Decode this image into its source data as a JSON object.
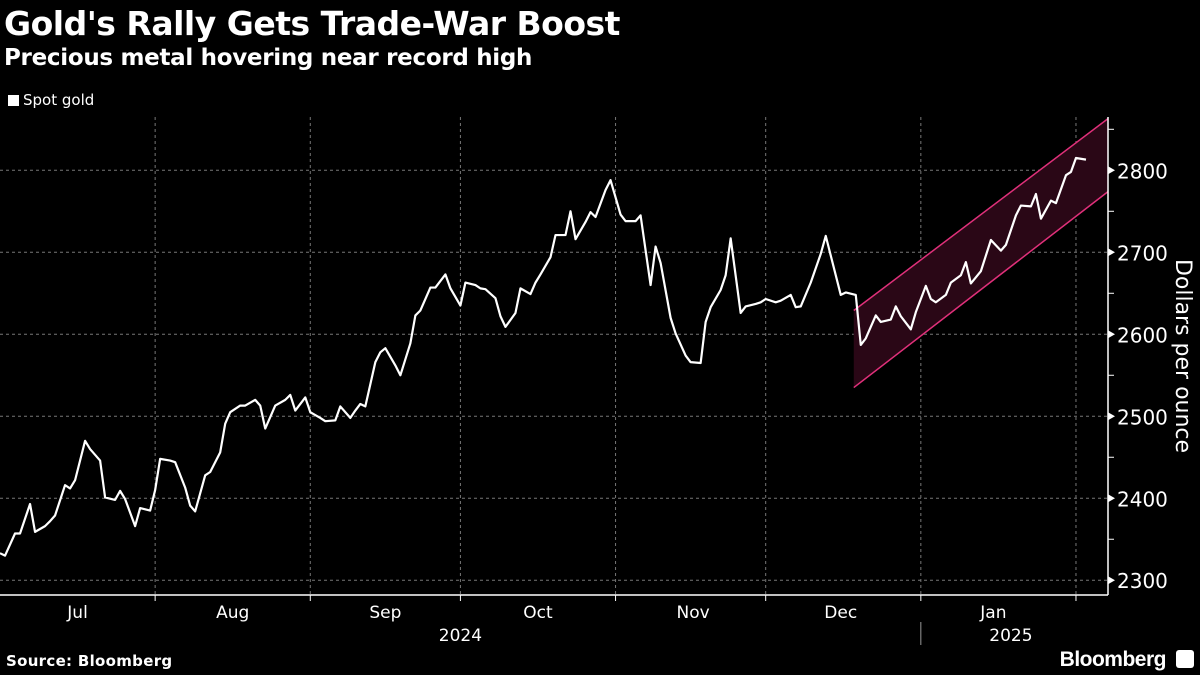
{
  "chart_data": {
    "type": "line",
    "title": "Gold's Rally Gets Trade-War Boost",
    "subtitle": "Precious metal hovering near record high",
    "legend": [
      {
        "name": "Spot gold",
        "color": "#ffffff"
      }
    ],
    "legend_placement": "top-left",
    "ylabel": "Dollars per ounce",
    "ylim": [
      2282,
      2865
    ],
    "yticks": [
      2300,
      2400,
      2500,
      2600,
      2700,
      2800
    ],
    "x_unit": "days since 2024-07-01",
    "xlim": [
      0,
      221.4
    ],
    "month_boundaries": [
      31,
      62,
      92,
      123,
      153,
      184,
      215
    ],
    "month_labels": [
      {
        "label": "Jul",
        "day": 15.5
      },
      {
        "label": "Aug",
        "day": 46.5
      },
      {
        "label": "Sep",
        "day": 77
      },
      {
        "label": "Oct",
        "day": 107.5
      },
      {
        "label": "Nov",
        "day": 138.5
      },
      {
        "label": "Dec",
        "day": 168
      },
      {
        "label": "Jan",
        "day": 198.5
      }
    ],
    "year_labels": [
      {
        "label": "2024",
        "day": 92
      },
      {
        "label": "2025",
        "day": 202
      }
    ],
    "year_divider_day": 184,
    "grid": true,
    "series": [
      {
        "name": "Spot gold",
        "color": "#ffffff",
        "points": [
          [
            0,
            2333
          ],
          [
            1,
            2330
          ],
          [
            3,
            2357
          ],
          [
            4,
            2357
          ],
          [
            6,
            2393
          ],
          [
            7,
            2359
          ],
          [
            9,
            2366
          ],
          [
            10,
            2372
          ],
          [
            11,
            2379
          ],
          [
            13,
            2416
          ],
          [
            14,
            2412
          ],
          [
            15,
            2422
          ],
          [
            17,
            2470
          ],
          [
            18,
            2460
          ],
          [
            20,
            2446
          ],
          [
            21,
            2401
          ],
          [
            23,
            2398
          ],
          [
            24,
            2409
          ],
          [
            25,
            2399
          ],
          [
            27,
            2366
          ],
          [
            28,
            2388
          ],
          [
            30,
            2385
          ],
          [
            31,
            2410
          ],
          [
            32,
            2448
          ],
          [
            34,
            2446
          ],
          [
            35,
            2444
          ],
          [
            37,
            2413
          ],
          [
            38,
            2391
          ],
          [
            39,
            2384
          ],
          [
            41,
            2428
          ],
          [
            42,
            2432
          ],
          [
            44,
            2456
          ],
          [
            45,
            2491
          ],
          [
            46,
            2505
          ],
          [
            48,
            2513
          ],
          [
            49,
            2513
          ],
          [
            51,
            2520
          ],
          [
            52,
            2513
          ],
          [
            53,
            2485
          ],
          [
            55,
            2513
          ],
          [
            57,
            2520
          ],
          [
            58,
            2526
          ],
          [
            59,
            2507
          ],
          [
            61,
            2523
          ],
          [
            62,
            2505
          ],
          [
            64,
            2498
          ],
          [
            65,
            2494
          ],
          [
            67,
            2495
          ],
          [
            68,
            2512
          ],
          [
            70,
            2498
          ],
          [
            71,
            2507
          ],
          [
            72,
            2515
          ],
          [
            73,
            2512
          ],
          [
            75,
            2566
          ],
          [
            76,
            2578
          ],
          [
            77,
            2583
          ],
          [
            79,
            2562
          ],
          [
            80,
            2550
          ],
          [
            82,
            2589
          ],
          [
            83,
            2623
          ],
          [
            84,
            2629
          ],
          [
            86,
            2657
          ],
          [
            87,
            2657
          ],
          [
            89,
            2673
          ],
          [
            90,
            2656
          ],
          [
            92,
            2635
          ],
          [
            93,
            2663
          ],
          [
            95,
            2660
          ],
          [
            96,
            2656
          ],
          [
            97,
            2655
          ],
          [
            99,
            2644
          ],
          [
            100,
            2622
          ],
          [
            101,
            2609
          ],
          [
            103,
            2626
          ],
          [
            104,
            2656
          ],
          [
            106,
            2649
          ],
          [
            107,
            2663
          ],
          [
            108,
            2673
          ],
          [
            110,
            2694
          ],
          [
            111,
            2721
          ],
          [
            113,
            2721
          ],
          [
            114,
            2750
          ],
          [
            115,
            2716
          ],
          [
            117,
            2737
          ],
          [
            118,
            2749
          ],
          [
            119,
            2743
          ],
          [
            121,
            2776
          ],
          [
            122,
            2788
          ],
          [
            124,
            2746
          ],
          [
            125,
            2738
          ],
          [
            127,
            2738
          ],
          [
            128,
            2745
          ],
          [
            130,
            2660
          ],
          [
            131,
            2707
          ],
          [
            132,
            2687
          ],
          [
            134,
            2620
          ],
          [
            135,
            2601
          ],
          [
            137,
            2574
          ],
          [
            138,
            2566
          ],
          [
            140,
            2565
          ],
          [
            141,
            2615
          ],
          [
            142,
            2633
          ],
          [
            144,
            2654
          ],
          [
            145,
            2672
          ],
          [
            146,
            2717
          ],
          [
            148,
            2626
          ],
          [
            149,
            2634
          ],
          [
            151,
            2637
          ],
          [
            152,
            2639
          ],
          [
            153,
            2643
          ],
          [
            155,
            2639
          ],
          [
            156,
            2641
          ],
          [
            158,
            2648
          ],
          [
            159,
            2633
          ],
          [
            160,
            2634
          ],
          [
            162,
            2663
          ],
          [
            164,
            2698
          ],
          [
            165,
            2720
          ],
          [
            168,
            2648
          ],
          [
            169,
            2651
          ],
          [
            171,
            2648
          ],
          [
            172,
            2587
          ],
          [
            173,
            2595
          ],
          [
            175,
            2623
          ],
          [
            176,
            2615
          ],
          [
            178,
            2618
          ],
          [
            179,
            2634
          ],
          [
            180,
            2622
          ],
          [
            182,
            2606
          ],
          [
            183,
            2627
          ],
          [
            185,
            2659
          ],
          [
            186,
            2643
          ],
          [
            187,
            2639
          ],
          [
            189,
            2648
          ],
          [
            190,
            2663
          ],
          [
            192,
            2672
          ],
          [
            193,
            2688
          ],
          [
            194,
            2662
          ],
          [
            196,
            2677
          ],
          [
            197,
            2696
          ],
          [
            198,
            2715
          ],
          [
            200,
            2702
          ],
          [
            201,
            2709
          ],
          [
            203,
            2745
          ],
          [
            204,
            2757
          ],
          [
            206,
            2756
          ],
          [
            207,
            2771
          ],
          [
            208,
            2741
          ],
          [
            210,
            2763
          ],
          [
            211,
            2760
          ],
          [
            213,
            2794
          ],
          [
            214,
            2798
          ],
          [
            215,
            2815
          ],
          [
            217,
            2813
          ]
        ]
      }
    ],
    "annotations": [
      {
        "type": "channel",
        "color": "#e0307a",
        "fill": "#2a0716",
        "start_day": 170.6,
        "end_day": 221.4,
        "upper": [
          2629,
          2863
        ],
        "lower": [
          2535,
          2774
        ]
      }
    ]
  },
  "footer": {
    "source": "Source: Bloomberg",
    "brand": "Bloomberg"
  }
}
